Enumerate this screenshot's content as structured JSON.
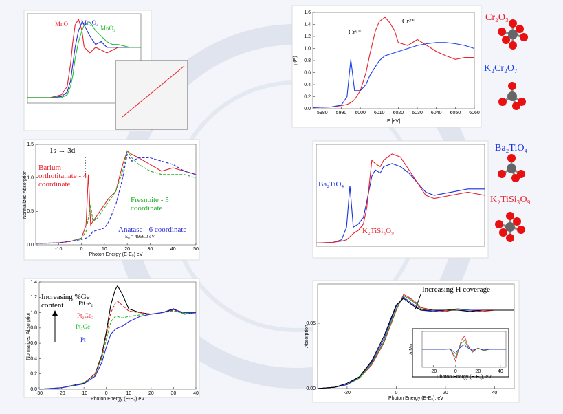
{
  "chart_data": [
    {
      "type": "line",
      "xlim": [
        0,
        100
      ],
      "ylim": [
        0,
        1.6
      ],
      "x": [
        0,
        10,
        20,
        30,
        35,
        38,
        40,
        42,
        45,
        48,
        50,
        55,
        60,
        65,
        70,
        75,
        80,
        90,
        100
      ],
      "series": [
        {
          "name": "MnO",
          "color": "#e8202a",
          "values": [
            0.1,
            0.1,
            0.1,
            0.15,
            0.3,
            0.7,
            1.1,
            1.4,
            1.5,
            1.3,
            1.0,
            0.9,
            1.0,
            0.95,
            0.9,
            0.95,
            1.0,
            1.0,
            1.0
          ]
        },
        {
          "name": "Mn₃O₄",
          "color": "#2a2adf",
          "values": [
            0.1,
            0.1,
            0.1,
            0.12,
            0.2,
            0.4,
            0.7,
            1.0,
            1.3,
            1.45,
            1.4,
            1.2,
            1.05,
            1.1,
            1.0,
            1.0,
            1.0,
            1.0,
            1.0
          ]
        },
        {
          "name": "MnO₂",
          "color": "#22c02a",
          "values": [
            0.1,
            0.1,
            0.1,
            0.1,
            0.15,
            0.3,
            0.5,
            0.8,
            1.1,
            1.3,
            1.4,
            1.45,
            1.3,
            1.2,
            1.1,
            1.05,
            1.05,
            1.0,
            1.0
          ]
        }
      ]
    },
    {
      "type": "line",
      "xlabel": "E [eV]",
      "ylabel": "μ(E)",
      "xlim": [
        5975,
        6060
      ],
      "ylim": [
        0,
        1.6
      ],
      "xticks": [
        5980,
        5990,
        6000,
        6010,
        6020,
        6030,
        6040,
        6050,
        6060
      ],
      "yticks": [
        {
          "value": 0,
          "label": "0.0"
        },
        0.2,
        0.4,
        0.6,
        0.8,
        {
          "value": 1,
          "label": "1.0"
        },
        1.2,
        1.4,
        1.6
      ],
      "x": [
        5975,
        5985,
        5990,
        5993,
        5995,
        5997,
        6000,
        6003,
        6005,
        6008,
        6010,
        6013,
        6015,
        6018,
        6020,
        6025,
        6030,
        6035,
        6040,
        6045,
        6050,
        6055,
        6060
      ],
      "series": [
        {
          "name": "Cr₂O₃",
          "color": "#e8202a",
          "values": [
            0.02,
            0.03,
            0.05,
            0.07,
            0.1,
            0.15,
            0.3,
            0.6,
            0.9,
            1.3,
            1.45,
            1.52,
            1.45,
            1.3,
            1.1,
            1.05,
            1.15,
            1.05,
            0.95,
            0.88,
            0.82,
            0.85,
            0.85
          ]
        },
        {
          "name": "K₂Cr₂O₇",
          "color": "#1a3ee8",
          "values": [
            0.02,
            0.03,
            0.06,
            0.2,
            0.82,
            0.3,
            0.3,
            0.4,
            0.55,
            0.7,
            0.8,
            0.88,
            0.9,
            0.93,
            0.95,
            1.0,
            1.05,
            1.08,
            1.1,
            1.1,
            1.08,
            1.05,
            1.0
          ]
        }
      ],
      "annotations": [
        "Cr⁶⁺",
        "Cr³⁺"
      ]
    },
    {
      "type": "line",
      "xlabel": "Photon Energy (E-E₀) eV",
      "ylabel": "Normalized Absorption",
      "xlim": [
        -20,
        50
      ],
      "ylim": [
        0,
        1.5
      ],
      "xticks": [
        -10,
        0,
        10,
        20,
        30,
        40,
        50
      ],
      "yticks": [
        {
          "value": 0,
          "label": "0.0"
        },
        0.5,
        {
          "value": 1,
          "label": "1.0"
        },
        1.5
      ],
      "x": [
        -20,
        -10,
        -5,
        0,
        2,
        3,
        4,
        5,
        7,
        10,
        12,
        15,
        18,
        20,
        22,
        25,
        30,
        35,
        40,
        45,
        50
      ],
      "series": [
        {
          "name": "Barium orthotitanate - 4 coordinate",
          "color": "#e8202a",
          "dash": false,
          "values": [
            0.02,
            0.03,
            0.05,
            0.1,
            0.3,
            1.05,
            0.3,
            0.35,
            0.45,
            0.6,
            0.7,
            0.8,
            1.2,
            1.4,
            1.35,
            1.3,
            1.2,
            1.1,
            1.15,
            1.1,
            1.05
          ]
        },
        {
          "name": "Fresnoite - 5 coordinate",
          "color": "#22b02a",
          "dash": true,
          "values": [
            0.02,
            0.03,
            0.05,
            0.1,
            0.2,
            0.4,
            0.6,
            0.35,
            0.4,
            0.55,
            0.65,
            0.8,
            1.1,
            1.4,
            1.3,
            1.2,
            1.1,
            1.05,
            1.05,
            1.05,
            1.0
          ]
        },
        {
          "name": "Anatase - 6 coordinate",
          "color": "#2a2adf",
          "dash": true,
          "values": [
            0.02,
            0.03,
            0.05,
            0.08,
            0.1,
            0.12,
            0.15,
            0.2,
            0.22,
            0.25,
            0.35,
            0.6,
            1.0,
            1.35,
            1.25,
            1.3,
            1.3,
            1.25,
            1.2,
            1.1,
            1.05
          ]
        }
      ],
      "annotations": [
        "1s → 3d",
        "E₀ = 4966.0 eV"
      ]
    },
    {
      "type": "line",
      "xlim": [
        0,
        100
      ],
      "ylim": [
        0,
        1.6
      ],
      "x": [
        0,
        10,
        15,
        18,
        20,
        22,
        25,
        28,
        30,
        33,
        35,
        38,
        40,
        45,
        50,
        55,
        60,
        65,
        70,
        80,
        90,
        100
      ],
      "series": [
        {
          "name": "Ba₂TiO₄",
          "color": "#1a2ee0",
          "values": [
            0.05,
            0.06,
            0.1,
            0.3,
            0.95,
            0.3,
            0.35,
            0.45,
            0.7,
            1.1,
            1.2,
            1.15,
            1.25,
            1.3,
            1.25,
            1.15,
            1.0,
            0.85,
            0.8,
            0.85,
            0.9,
            0.9
          ]
        },
        {
          "name": "K₂TiSi₃O₉",
          "color": "#e8202a",
          "values": [
            0.05,
            0.06,
            0.08,
            0.1,
            0.15,
            0.2,
            0.25,
            0.35,
            0.6,
            1.35,
            1.3,
            1.25,
            1.35,
            1.45,
            1.4,
            1.2,
            1.0,
            0.8,
            0.75,
            0.8,
            0.85,
            0.8
          ]
        }
      ]
    },
    {
      "type": "line",
      "xlabel": "Photon Energy (E-E₀) eV",
      "ylabel": "Normalized Absorption",
      "xlim": [
        -30,
        40
      ],
      "ylim": [
        0,
        1.4
      ],
      "xticks": [
        -30,
        -20,
        -10,
        0,
        10,
        20,
        30,
        40
      ],
      "yticks": [
        {
          "value": 0,
          "label": "0.0"
        },
        0.2,
        0.4,
        0.6,
        0.8,
        {
          "value": 1,
          "label": "1.0"
        },
        1.2,
        1.4
      ],
      "x": [
        -30,
        -20,
        -10,
        -5,
        -2,
        0,
        2,
        4,
        5,
        7,
        10,
        15,
        20,
        25,
        30,
        35,
        40
      ],
      "series": [
        {
          "name": "PtGe₂",
          "color": "#000000",
          "values": [
            0,
            0.02,
            0.08,
            0.2,
            0.45,
            0.75,
            1.1,
            1.3,
            1.35,
            1.25,
            1.05,
            1.0,
            0.98,
            1.0,
            1.05,
            0.98,
            1.0
          ]
        },
        {
          "name": "Pt₂Ge₃",
          "color": "#e8202a",
          "dash": true,
          "values": [
            0,
            0.02,
            0.08,
            0.2,
            0.42,
            0.7,
            1.0,
            1.12,
            1.15,
            1.1,
            1.02,
            1.0,
            0.98,
            1.0,
            1.03,
            0.99,
            1.0
          ]
        },
        {
          "name": "Pt₃Ge",
          "color": "#22c02a",
          "dash": true,
          "values": [
            0,
            0.02,
            0.08,
            0.18,
            0.4,
            0.65,
            0.88,
            0.95,
            0.95,
            0.93,
            0.95,
            0.97,
            0.98,
            1.0,
            1.02,
            0.99,
            1.0
          ]
        },
        {
          "name": "Pt",
          "color": "#2a2adf",
          "values": [
            0,
            0.02,
            0.07,
            0.17,
            0.35,
            0.55,
            0.72,
            0.78,
            0.8,
            0.82,
            0.88,
            0.95,
            0.98,
            1.0,
            1.04,
            1.0,
            1.0
          ]
        }
      ],
      "annotations": [
        "Increasing %Ge content"
      ]
    },
    {
      "type": "line",
      "xlabel": "Photon Energy (E-E₀), eV",
      "ylabel": "Absorption",
      "xlim": [
        -32,
        48
      ],
      "ylim": [
        0,
        0.08
      ],
      "xticks": [
        -20,
        0,
        20,
        40
      ],
      "yticks": [
        {
          "value": 0,
          "label": "0.00"
        },
        0.05
      ],
      "x": [
        -32,
        -25,
        -20,
        -15,
        -10,
        -5,
        0,
        3,
        5,
        8,
        10,
        15,
        20,
        25,
        30,
        35,
        40,
        45,
        48
      ],
      "series": [
        {
          "color": "#e8202a",
          "values": [
            0,
            0.001,
            0.003,
            0.008,
            0.018,
            0.035,
            0.06,
            0.072,
            0.07,
            0.066,
            0.062,
            0.06,
            0.059,
            0.061,
            0.06,
            0.059,
            0.06,
            0.06,
            0.06
          ]
        },
        {
          "color": "#22a02a",
          "values": [
            0,
            0.001,
            0.003,
            0.008,
            0.019,
            0.036,
            0.061,
            0.071,
            0.069,
            0.065,
            0.061,
            0.059,
            0.06,
            0.061,
            0.06,
            0.06,
            0.06,
            0.06,
            0.06
          ]
        },
        {
          "color": "#2a2adf",
          "values": [
            0,
            0.001,
            0.003,
            0.009,
            0.02,
            0.038,
            0.063,
            0.07,
            0.067,
            0.063,
            0.06,
            0.059,
            0.06,
            0.06,
            0.06,
            0.06,
            0.06,
            0.06,
            0.06
          ]
        },
        {
          "color": "#000000",
          "values": [
            0,
            0.001,
            0.004,
            0.009,
            0.021,
            0.04,
            0.064,
            0.069,
            0.066,
            0.062,
            0.06,
            0.06,
            0.06,
            0.06,
            0.059,
            0.06,
            0.06,
            0.06,
            0.06
          ]
        }
      ],
      "annotations": [
        "Increasing H coverage"
      ]
    },
    {
      "type": "line",
      "xlabel": "Photon Energy (E-E₀), eV",
      "ylabel": "Δ Mu",
      "xlim": [
        -30,
        45
      ],
      "ylim": [
        -0.6,
        0.6
      ],
      "xticks": [
        -20,
        0,
        20,
        40
      ],
      "x": [
        -30,
        -10,
        -5,
        -2,
        0,
        2,
        5,
        8,
        10,
        15,
        20,
        25,
        30,
        40,
        45
      ],
      "series": [
        {
          "color": "#e8202a",
          "values": [
            0,
            0,
            0.02,
            -0.2,
            -0.4,
            -0.1,
            0.3,
            0.45,
            0.2,
            -0.1,
            0.05,
            -0.05,
            0,
            0,
            0
          ]
        },
        {
          "color": "#22a02a",
          "values": [
            0,
            0,
            0.01,
            -0.14,
            -0.28,
            -0.07,
            0.2,
            0.3,
            0.14,
            -0.07,
            0.04,
            -0.04,
            0,
            0,
            0
          ]
        },
        {
          "color": "#2a2adf",
          "values": [
            0,
            0,
            0.01,
            -0.07,
            -0.14,
            -0.03,
            0.1,
            0.16,
            0.07,
            -0.03,
            0.02,
            -0.02,
            0,
            0,
            0
          ]
        }
      ]
    }
  ]
}
